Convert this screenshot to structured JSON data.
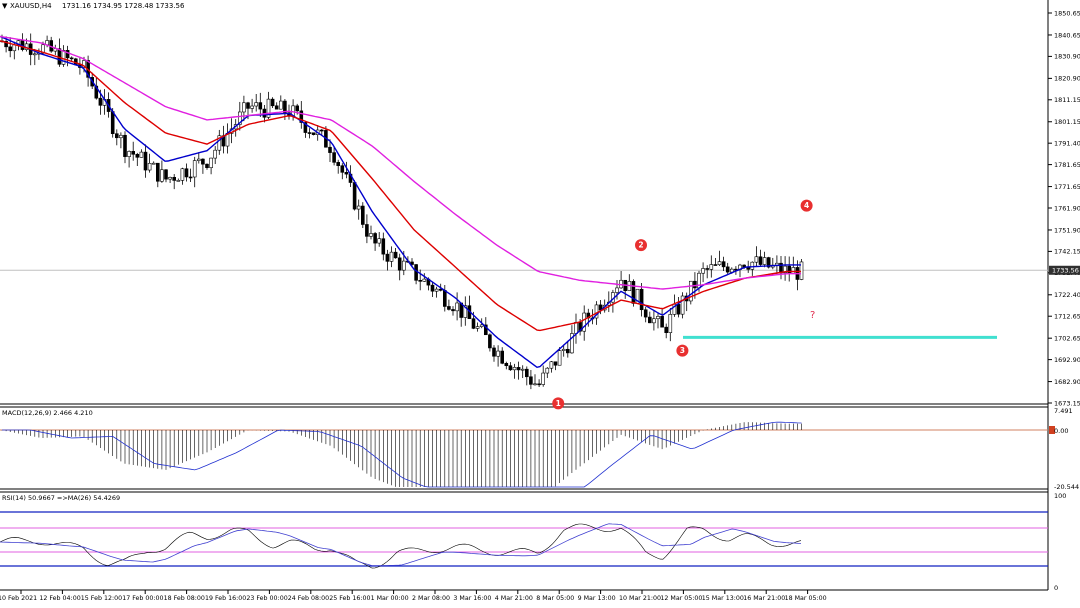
{
  "header": {
    "symbol_label": "XAUUSD,H4",
    "ohlc_text": "1731.16 1734.95 1728.48 1733.56"
  },
  "price_scale": {
    "ticks": [
      1850.65,
      1840.65,
      1830.9,
      1820.9,
      1811.15,
      1801.15,
      1791.4,
      1781.65,
      1771.65,
      1761.9,
      1751.9,
      1742.15,
      1732.4,
      1722.4,
      1712.65,
      1702.65,
      1692.9,
      1682.9,
      1673.15
    ],
    "current_price_label": "1733.56",
    "current_price": 1733.56
  },
  "time_axis": {
    "labels": [
      "10 Feb 2021",
      "12 Feb 04:00",
      "15 Feb 12:00",
      "17 Feb 00:00",
      "18 Feb 08:00",
      "19 Feb 16:00",
      "23 Feb 00:00",
      "24 Feb 08:00",
      "25 Feb 16:00",
      "1 Mar 00:00",
      "2 Mar 08:00",
      "3 Mar 16:00",
      "4 Mar 21:00",
      "8 Mar 05:00",
      "9 Mar 13:00",
      "10 Mar 21:00",
      "12 Mar 05:00",
      "15 Mar 13:00",
      "16 Mar 21:00",
      "18 Mar 05:00"
    ]
  },
  "annotations": {
    "markers": [
      {
        "label": "1",
        "time_label": "8 Mar 05:00",
        "price": 1673
      },
      {
        "label": "2",
        "time_label": "10 Mar 21:00",
        "price": 1745
      },
      {
        "label": "3",
        "time_label": "12 Mar 05:00",
        "price": 1697
      },
      {
        "label": "4",
        "time_label": "18 Mar 05:00",
        "price": 1763
      }
    ],
    "question_mark": "?",
    "support_level": {
      "price": 1703,
      "color": "#40e0d0"
    }
  },
  "macd": {
    "label": "MACD(12,26,9) 2.466 4.210",
    "scale_top": "7.491",
    "scale_zero": "0.00",
    "scale_bottom": "-20.544"
  },
  "rsi": {
    "label": "RSI(14) 50.9667  =>MA(26) 54.4269",
    "scale_top": "100",
    "scale_bottom": "0"
  },
  "chart_data": {
    "type": "line",
    "title": "",
    "instrument": "XAUUSD H4",
    "xlabel": "",
    "ylabel": "",
    "ylim": [
      1673.15,
      1855
    ],
    "x": [
      "10 Feb 2021",
      "12 Feb 04:00",
      "15 Feb 12:00",
      "17 Feb 00:00",
      "18 Feb 08:00",
      "19 Feb 16:00",
      "23 Feb 00:00",
      "24 Feb 08:00",
      "25 Feb 16:00",
      "1 Mar 00:00",
      "2 Mar 08:00",
      "3 Mar 16:00",
      "4 Mar 21:00",
      "8 Mar 05:00",
      "9 Mar 13:00",
      "10 Mar 21:00",
      "12 Mar 05:00",
      "15 Mar 13:00",
      "16 Mar 21:00",
      "18 Mar 05:00"
    ],
    "series": [
      {
        "values": [
          1838,
          1835,
          1826,
          1790,
          1775,
          1784,
          1808,
          1806,
          1790,
          1746,
          1732,
          1718,
          1697,
          1681,
          1708,
          1730,
          1706,
          1733,
          1738,
          1733
        ],
        "color": "#000000"
      },
      {
        "values": [
          1840,
          1832,
          1826,
          1798,
          1783,
          1788,
          1804,
          1805,
          1792,
          1760,
          1734,
          1721,
          1703,
          1689,
          1706,
          1724,
          1713,
          1727,
          1735,
          1736
        ],
        "color": "#0000cc"
      },
      {
        "values": [
          1838,
          1833,
          1827,
          1810,
          1796,
          1791,
          1800,
          1804,
          1797,
          1775,
          1752,
          1735,
          1718,
          1706,
          1710,
          1720,
          1716,
          1724,
          1730,
          1733
        ],
        "color": "#dd0000"
      },
      {
        "values": [
          1840,
          1837,
          1830,
          1819,
          1808,
          1802,
          1804,
          1806,
          1802,
          1790,
          1774,
          1759,
          1745,
          1733,
          1729,
          1727,
          1725,
          1727,
          1730,
          1732
        ],
        "color": "#e020e0"
      }
    ],
    "candles_close": [
      1838,
      1835,
      1826,
      1790,
      1775,
      1784,
      1808,
      1806,
      1790,
      1746,
      1732,
      1718,
      1697,
      1681,
      1708,
      1730,
      1706,
      1733,
      1738,
      1733
    ]
  }
}
